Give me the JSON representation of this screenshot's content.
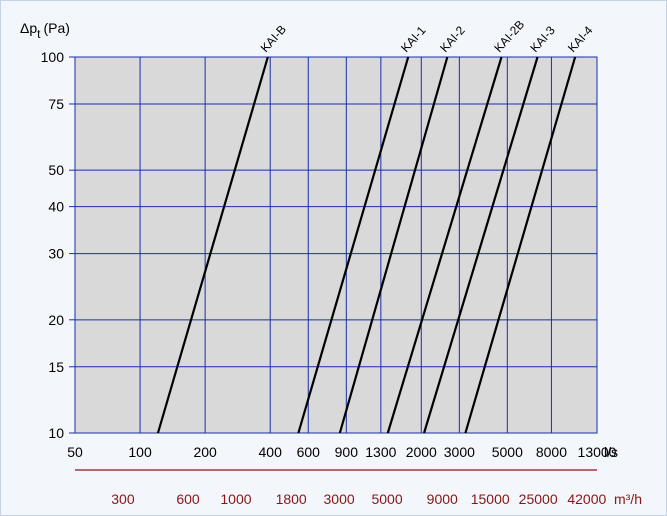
{
  "chart_data": {
    "type": "line",
    "ylabel_main": "Δp",
    "ylabel_sub": "t",
    "ylabel_unit": "(Pa)",
    "x_unit": "l/s",
    "x2_unit": "m³/h",
    "x_scale": "log",
    "y_scale": "log",
    "xlim": [
      50,
      13000
    ],
    "ylim": [
      10,
      100
    ],
    "grid": true,
    "x_ticks": [
      50,
      100,
      200,
      400,
      600,
      900,
      1300,
      2000,
      3000,
      5000,
      8000,
      13000
    ],
    "x_tick_labels": [
      "50",
      "100",
      "200",
      "400",
      "600",
      "900",
      "1300",
      "2000",
      "3000",
      "5000",
      "8000",
      "13000"
    ],
    "y_ticks": [
      10,
      15,
      20,
      30,
      40,
      50,
      75,
      100
    ],
    "y_tick_labels": [
      "10",
      "15",
      "20",
      "30",
      "40",
      "50",
      "75",
      "100"
    ],
    "x2_ticks": [
      300,
      600,
      1000,
      1800,
      3000,
      5000,
      9000,
      15000,
      25000,
      42000
    ],
    "x2_tick_labels": [
      "300",
      "600",
      "1000",
      "1800",
      "3000",
      "5000",
      "9000",
      "15000",
      "25000",
      "42000"
    ],
    "series": [
      {
        "name": "KAI-B",
        "x": [
          121,
          390
        ],
        "y": [
          10,
          100
        ]
      },
      {
        "name": "KAI-1",
        "x": [
          540,
          1740
        ],
        "y": [
          10,
          100
        ]
      },
      {
        "name": "KAI-2",
        "x": [
          840,
          2640
        ],
        "y": [
          10,
          100
        ]
      },
      {
        "name": "KAI-2B",
        "x": [
          1400,
          4700
        ],
        "y": [
          10,
          100
        ]
      },
      {
        "name": "KAI-3",
        "x": [
          2060,
          6900
        ],
        "y": [
          10,
          100
        ]
      },
      {
        "name": "KAI-4",
        "x": [
          3200,
          10300
        ],
        "y": [
          10,
          100
        ]
      }
    ]
  },
  "colors": {
    "plot_bg": "#d9d9d9",
    "grid": "#1a2ea8",
    "series": "#000000",
    "m3h_axis": "#8b1414"
  }
}
